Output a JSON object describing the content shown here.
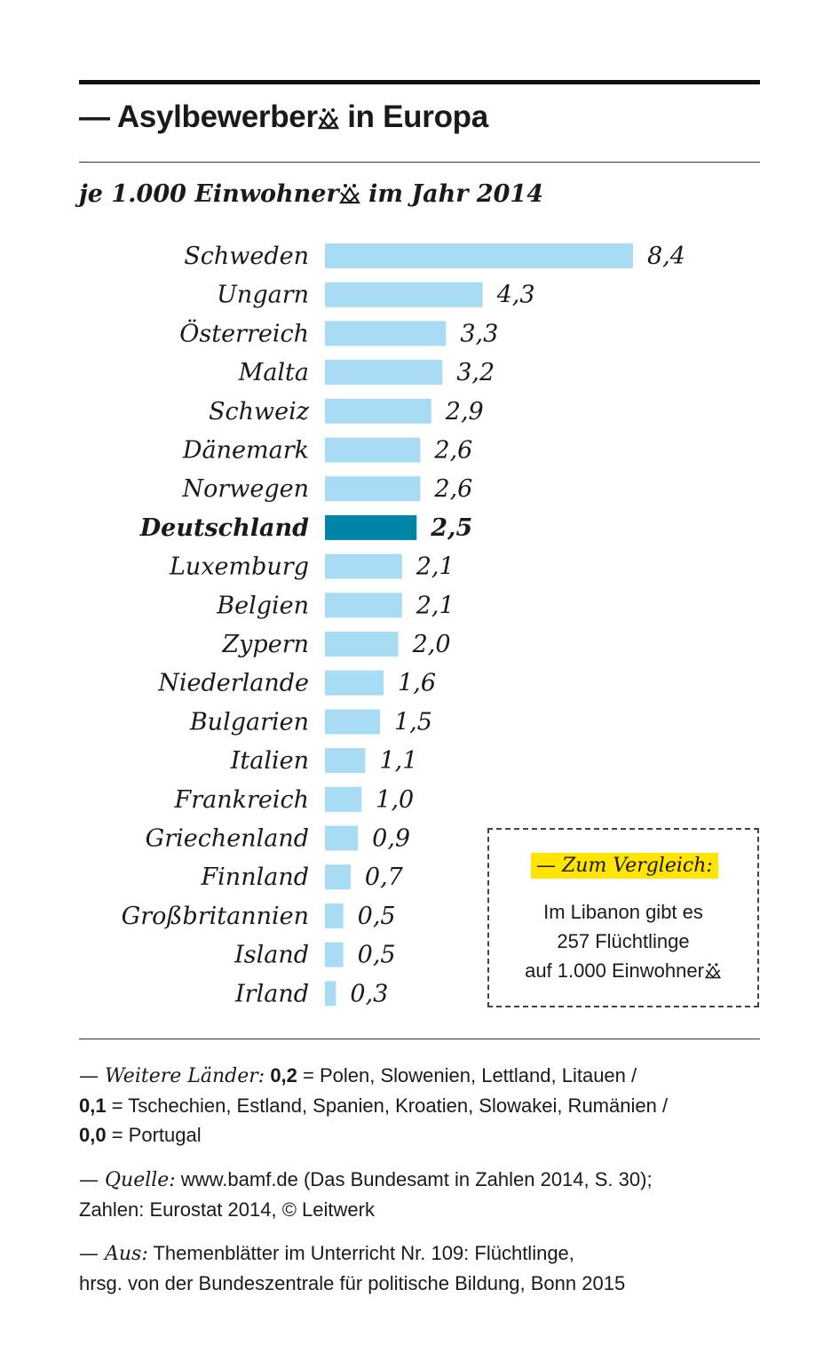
{
  "header": {
    "title_prefix": "— Asylbewerber",
    "title_suffix": " in Europa",
    "subtitle_prefix": "je 1.000 Einwohner",
    "subtitle_suffix": " im Jahr 2014"
  },
  "chart_data": {
    "type": "bar",
    "orientation": "horizontal",
    "categories": [
      "Schweden",
      "Ungarn",
      "Österreich",
      "Malta",
      "Schweiz",
      "Dänemark",
      "Norwegen",
      "Deutschland",
      "Luxemburg",
      "Belgien",
      "Zypern",
      "Niederlande",
      "Bulgarien",
      "Italien",
      "Frankreich",
      "Griechenland",
      "Finnland",
      "Großbritannien",
      "Island",
      "Irland"
    ],
    "values": [
      8.4,
      4.3,
      3.3,
      3.2,
      2.9,
      2.6,
      2.6,
      2.5,
      2.1,
      2.1,
      2.0,
      1.6,
      1.5,
      1.1,
      1.0,
      0.9,
      0.7,
      0.5,
      0.5,
      0.3
    ],
    "value_labels": [
      "8,4",
      "4,3",
      "3,3",
      "3,2",
      "2,9",
      "2,6",
      "2,6",
      "2,5",
      "2,1",
      "2,1",
      "2,0",
      "1,6",
      "1,5",
      "1,1",
      "1,0",
      "0,9",
      "0,7",
      "0,5",
      "0,5",
      "0,3"
    ],
    "highlight": "Deutschland",
    "colors": {
      "bar": "#a8dcf4",
      "highlight": "#0085a6"
    },
    "xlim": [
      0,
      8.4
    ]
  },
  "comparison": {
    "heading": "— Zum Vergleich:",
    "line1": "Im Libanon gibt es",
    "line2": "257 Flüchtlinge",
    "line3_prefix": "auf 1.000 Einwohner"
  },
  "notes": {
    "more_label": "— Weitere Länder:",
    "v02": "0,2",
    "l02": " = Polen, Slowenien, Lettland, Litauen /",
    "v01": "0,1",
    "l01": " = Tschechien, Estland, Spanien, Kroatien, Slowakei, Rumänien /",
    "v00": "0,0",
    "l00": " = Portugal",
    "source_label": "— Quelle:",
    "source_1": " www.bamf.de (Das Bundesamt in Zahlen 2014, S. 30);",
    "source_2": "Zahlen: Eurostat 2014, © Leitwerk",
    "from_label": "— Aus:",
    "from_1": " Themenblätter im Unterricht Nr. 109: Flüchtlinge,",
    "from_2": "hrsg. von der Bundeszentrale für politische Bildung, Bonn 2015"
  },
  "icons": {
    "gender": "gender-star-icon"
  }
}
